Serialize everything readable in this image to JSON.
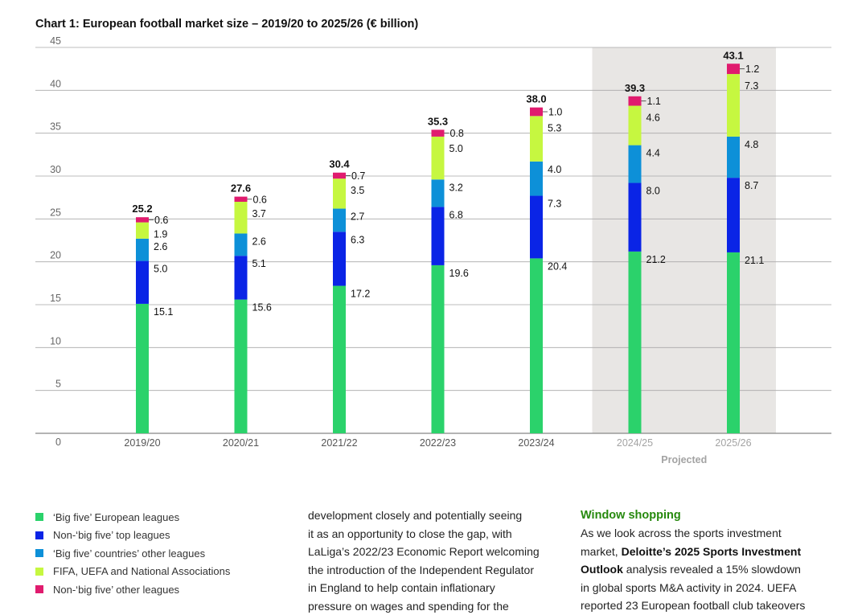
{
  "title": "Chart 1: European football market size – 2019/20 to 2025/26 (€ billion)",
  "chart_data": {
    "type": "bar",
    "stacked": true,
    "categories": [
      "2019/20",
      "2020/21",
      "2021/22",
      "2022/23",
      "2023/24",
      "2024/25",
      "2025/26"
    ],
    "series": [
      {
        "name": "‘Big five’ European leagues",
        "color": "#2bd26b",
        "values": [
          15.1,
          15.6,
          17.2,
          19.6,
          20.4,
          21.2,
          21.1
        ]
      },
      {
        "name": "Non-‘big five’ top leagues",
        "color": "#0a24e6",
        "values": [
          5.0,
          5.1,
          6.3,
          6.8,
          7.3,
          8.0,
          8.7
        ]
      },
      {
        "name": "‘Big five’ countries’ other leagues",
        "color": "#0d90d8",
        "values": [
          2.6,
          2.6,
          2.7,
          3.2,
          4.0,
          4.4,
          4.8
        ]
      },
      {
        "name": "FIFA, UEFA and National Associations",
        "color": "#c6f740",
        "values": [
          1.9,
          3.7,
          3.5,
          5.0,
          5.3,
          4.6,
          7.3
        ]
      },
      {
        "name": "Non-‘big five’ other leagues",
        "color": "#e01b6e",
        "values": [
          0.6,
          0.6,
          0.7,
          0.8,
          1.0,
          1.1,
          1.2
        ]
      }
    ],
    "totals": [
      25.2,
      27.6,
      30.4,
      35.3,
      38.0,
      39.3,
      43.1
    ],
    "yticks": [
      0,
      5,
      10,
      15,
      20,
      25,
      30,
      35,
      40,
      45
    ],
    "ylim": [
      0,
      45
    ],
    "projected_categories": [
      "2024/25",
      "2025/26"
    ],
    "projected_label": "Projected",
    "grid": true
  },
  "text_middle": [
    "development closely and potentially seeing",
    "it as an opportunity to close the gap, with",
    "LaLiga’s 2022/23 Economic Report welcoming",
    "the introduction of the Independent Regulator",
    "in England to help contain inflationary",
    "pressure on wages and spending for the"
  ],
  "text_right": {
    "heading": "Window shopping",
    "line1": "As we look across the sports investment",
    "line2_a": "market, ",
    "line2_b": "Deloitte’s 2025 Sports Investment",
    "line3_a": "Outlook",
    "line3_b": " analysis revealed a 15% slowdown",
    "line4": "in global sports M&A activity in 2024. UEFA",
    "line5": "reported 23 European football club takeovers"
  }
}
